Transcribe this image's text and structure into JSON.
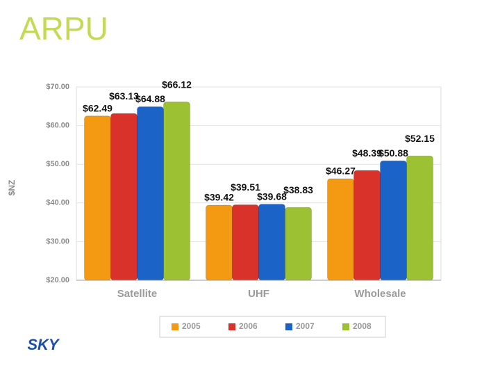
{
  "chart_data": {
    "type": "bar",
    "title": "ARPU",
    "y_label": "$NZ",
    "logo": "SKY",
    "categories": [
      "Satellite",
      "UHF",
      "Wholesale"
    ],
    "series": [
      {
        "name": "2005",
        "color": "#f39a12",
        "values": [
          62.49,
          39.42,
          46.27
        ],
        "value_labels": [
          "$62.49",
          "$39.42",
          "$46.27"
        ]
      },
      {
        "name": "2006",
        "color": "#d8322a",
        "values": [
          63.13,
          39.51,
          48.39
        ],
        "value_labels": [
          "$63.13",
          "$39.51",
          "$48.39"
        ]
      },
      {
        "name": "2007",
        "color": "#1c63c7",
        "values": [
          64.88,
          39.68,
          50.88
        ],
        "value_labels": [
          "$64.88",
          "$39.68",
          "$50.88"
        ]
      },
      {
        "name": "2008",
        "color": "#9cc234",
        "values": [
          66.12,
          38.83,
          52.15
        ],
        "value_labels": [
          "$66.12",
          "$38.83",
          "$52.15"
        ]
      }
    ],
    "ylim": [
      20,
      70
    ],
    "yticks": [
      {
        "value": 20,
        "label": "$20.00"
      },
      {
        "value": 30,
        "label": "$30.00"
      },
      {
        "value": 40,
        "label": "$40.00"
      },
      {
        "value": 50,
        "label": "$50.00"
      },
      {
        "value": 60,
        "label": "$60.00"
      },
      {
        "value": 70,
        "label": "$70.00"
      }
    ],
    "grid": true
  }
}
